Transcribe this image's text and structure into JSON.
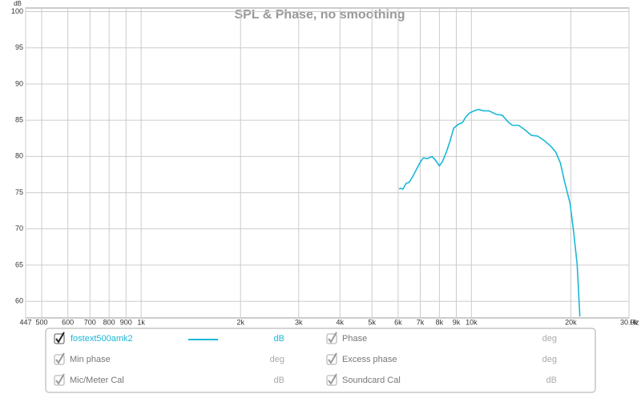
{
  "chart_data": {
    "type": "line",
    "title": "SPL & Phase, no smoothing",
    "y_label": "dB",
    "x_label": "Hz",
    "xscale": "log",
    "grid": true,
    "xlim": [
      447,
      30000
    ],
    "xticks": [
      447,
      500,
      600,
      700,
      800,
      900,
      {
        "value": 1000,
        "label": "1k"
      },
      {
        "value": 2000,
        "label": "2k"
      },
      {
        "value": 3000,
        "label": "3k"
      },
      {
        "value": 4000,
        "label": "4k"
      },
      {
        "value": 5000,
        "label": "5k"
      },
      {
        "value": 6000,
        "label": "6k"
      },
      {
        "value": 7000,
        "label": "7k"
      },
      {
        "value": 8000,
        "label": "8k"
      },
      {
        "value": 9000,
        "label": "9k"
      },
      {
        "value": 10000,
        "label": "10k"
      },
      {
        "value": 20000,
        "label": "20k"
      },
      {
        "value": 30000,
        "label": "30.0k"
      }
    ],
    "ylim": [
      57.7,
      100.5
    ],
    "yticks": [
      60,
      65,
      70,
      75,
      80,
      85,
      90,
      95,
      100
    ],
    "x": [
      6040,
      6100,
      6200,
      6350,
      6470,
      6620,
      6780,
      7000,
      7150,
      7360,
      7600,
      7780,
      8000,
      8170,
      8400,
      8600,
      8840,
      9100,
      9400,
      9600,
      9870,
      10200,
      10500,
      10900,
      11300,
      11900,
      12400,
      12900,
      13300,
      13900,
      14500,
      15200,
      15900,
      16600,
      17400,
      18000,
      18600,
      19100,
      19900,
      20400,
      20900,
      21300
    ],
    "series": [
      {
        "name": "fostext500amk2",
        "color": "#1ab8d8",
        "values": [
          75.5,
          75.6,
          75.5,
          76.3,
          76.4,
          77.1,
          78.0,
          79.2,
          79.8,
          79.7,
          80.0,
          79.5,
          78.7,
          79.3,
          80.6,
          82.0,
          83.9,
          84.4,
          84.7,
          85.4,
          86.0,
          86.3,
          86.5,
          86.3,
          86.3,
          85.8,
          85.7,
          84.8,
          84.3,
          84.3,
          83.7,
          82.9,
          82.8,
          82.2,
          81.4,
          80.6,
          79.1,
          76.7,
          73.5,
          69.5,
          65.1,
          57.9
        ]
      }
    ]
  },
  "panel": {
    "series_unit": "dB",
    "items": [
      {
        "label": "Phase",
        "unit": "deg"
      },
      {
        "label": "Min phase",
        "unit": "deg"
      },
      {
        "label": "Excess phase",
        "unit": "deg"
      },
      {
        "label": "Mic/Meter Cal",
        "unit": "dB"
      },
      {
        "label": "Soundcard Cal",
        "unit": "dB"
      }
    ]
  }
}
